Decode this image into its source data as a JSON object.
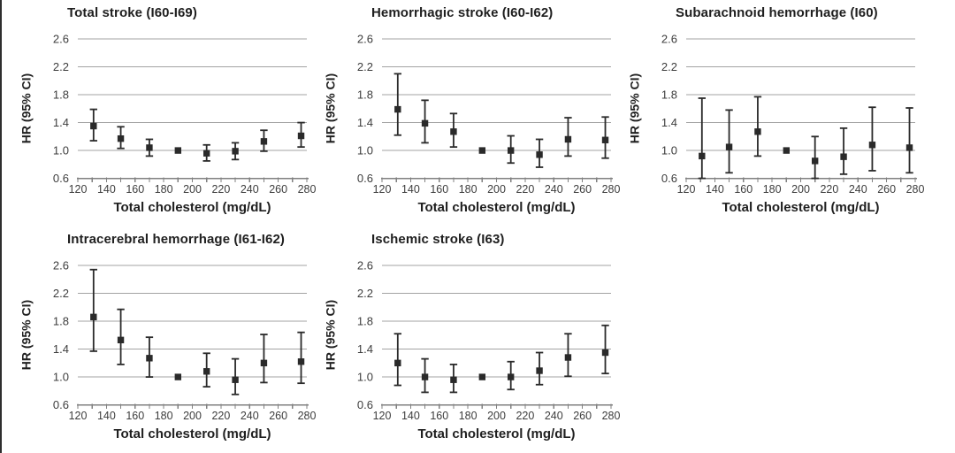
{
  "figure": {
    "y_axis_label": "HR (95% CI)",
    "x_axis_label": "Total cholesterol (mg/dL)",
    "y_ticks": [
      0.6,
      1.0,
      1.4,
      1.8,
      2.2,
      2.6
    ],
    "x_ticks": [
      120,
      140,
      160,
      180,
      200,
      220,
      240,
      260,
      280
    ],
    "x_minor_tick_step": 10,
    "grid": "horizontal-only",
    "legend": "none",
    "colors": {
      "marker": "#2a2a2a",
      "error_bar": "#2a2a2a",
      "gridline": "#a3a3a3",
      "axis_line": "#808080",
      "tick_label": "#3d3d3d",
      "title_text": "#1f1f1f",
      "background": "#ffffff"
    }
  },
  "chart_data": [
    {
      "type": "scatter",
      "title": "Total stroke (I60-I69)",
      "xlabel": "Total cholesterol (mg/dL)",
      "ylabel": "HR (95% CI)",
      "xlim": [
        120,
        280
      ],
      "ylim": [
        0.6,
        2.6
      ],
      "points": [
        {
          "x": 131,
          "hr": 1.35,
          "lo": 1.14,
          "hi": 1.59
        },
        {
          "x": 150,
          "hr": 1.17,
          "lo": 1.03,
          "hi": 1.34
        },
        {
          "x": 170,
          "hr": 1.04,
          "lo": 0.92,
          "hi": 1.16
        },
        {
          "x": 190,
          "hr": 1.0,
          "lo": null,
          "hi": null,
          "reference": true
        },
        {
          "x": 210,
          "hr": 0.96,
          "lo": 0.85,
          "hi": 1.08
        },
        {
          "x": 230,
          "hr": 0.99,
          "lo": 0.87,
          "hi": 1.11
        },
        {
          "x": 250,
          "hr": 1.13,
          "lo": 0.99,
          "hi": 1.29
        },
        {
          "x": 276,
          "hr": 1.21,
          "lo": 1.05,
          "hi": 1.4
        }
      ]
    },
    {
      "type": "scatter",
      "title": "Hemorrhagic stroke (I60-I62)",
      "xlabel": "Total cholesterol (mg/dL)",
      "ylabel": "HR (95% CI)",
      "xlim": [
        120,
        280
      ],
      "ylim": [
        0.6,
        2.6
      ],
      "points": [
        {
          "x": 131,
          "hr": 1.59,
          "lo": 1.22,
          "hi": 2.1
        },
        {
          "x": 150,
          "hr": 1.39,
          "lo": 1.11,
          "hi": 1.72
        },
        {
          "x": 170,
          "hr": 1.27,
          "lo": 1.05,
          "hi": 1.53
        },
        {
          "x": 190,
          "hr": 1.0,
          "lo": null,
          "hi": null,
          "reference": true
        },
        {
          "x": 210,
          "hr": 1.0,
          "lo": 0.82,
          "hi": 1.21
        },
        {
          "x": 230,
          "hr": 0.94,
          "lo": 0.76,
          "hi": 1.16
        },
        {
          "x": 250,
          "hr": 1.16,
          "lo": 0.92,
          "hi": 1.47
        },
        {
          "x": 276,
          "hr": 1.15,
          "lo": 0.89,
          "hi": 1.48
        }
      ]
    },
    {
      "type": "scatter",
      "title": "Subarachnoid hemorrhage (I60)",
      "xlabel": "Total cholesterol (mg/dL)",
      "ylabel": "HR (95% CI)",
      "xlim": [
        120,
        280
      ],
      "ylim": [
        0.6,
        2.6
      ],
      "points": [
        {
          "x": 131,
          "hr": 0.92,
          "lo": 0.6,
          "hi": 1.75
        },
        {
          "x": 150,
          "hr": 1.05,
          "lo": 0.68,
          "hi": 1.58
        },
        {
          "x": 170,
          "hr": 1.27,
          "lo": 0.92,
          "hi": 1.77
        },
        {
          "x": 190,
          "hr": 1.0,
          "lo": null,
          "hi": null,
          "reference": true
        },
        {
          "x": 210,
          "hr": 0.85,
          "lo": 0.6,
          "hi": 1.2
        },
        {
          "x": 230,
          "hr": 0.91,
          "lo": 0.66,
          "hi": 1.32
        },
        {
          "x": 250,
          "hr": 1.08,
          "lo": 0.71,
          "hi": 1.62
        },
        {
          "x": 276,
          "hr": 1.04,
          "lo": 0.68,
          "hi": 1.61
        }
      ]
    },
    {
      "type": "scatter",
      "title": "Intracerebral hemorrhage (I61-I62)",
      "xlabel": "Total cholesterol (mg/dL)",
      "ylabel": "HR (95% CI)",
      "xlim": [
        120,
        280
      ],
      "ylim": [
        0.6,
        2.6
      ],
      "points": [
        {
          "x": 131,
          "hr": 1.86,
          "lo": 1.37,
          "hi": 2.54
        },
        {
          "x": 150,
          "hr": 1.53,
          "lo": 1.18,
          "hi": 1.97
        },
        {
          "x": 170,
          "hr": 1.27,
          "lo": 1.0,
          "hi": 1.57
        },
        {
          "x": 190,
          "hr": 1.0,
          "lo": null,
          "hi": null,
          "reference": true
        },
        {
          "x": 210,
          "hr": 1.08,
          "lo": 0.86,
          "hi": 1.34
        },
        {
          "x": 230,
          "hr": 0.96,
          "lo": 0.75,
          "hi": 1.26
        },
        {
          "x": 250,
          "hr": 1.2,
          "lo": 0.92,
          "hi": 1.61
        },
        {
          "x": 276,
          "hr": 1.22,
          "lo": 0.91,
          "hi": 1.64
        }
      ]
    },
    {
      "type": "scatter",
      "title": "Ischemic stroke (I63)",
      "xlabel": "Total cholesterol (mg/dL)",
      "ylabel": "HR (95% CI)",
      "xlim": [
        120,
        280
      ],
      "ylim": [
        0.6,
        2.6
      ],
      "points": [
        {
          "x": 131,
          "hr": 1.2,
          "lo": 0.88,
          "hi": 1.62
        },
        {
          "x": 150,
          "hr": 1.0,
          "lo": 0.78,
          "hi": 1.26
        },
        {
          "x": 170,
          "hr": 0.96,
          "lo": 0.78,
          "hi": 1.18
        },
        {
          "x": 190,
          "hr": 1.0,
          "lo": null,
          "hi": null,
          "reference": true
        },
        {
          "x": 210,
          "hr": 1.0,
          "lo": 0.82,
          "hi": 1.22
        },
        {
          "x": 230,
          "hr": 1.09,
          "lo": 0.89,
          "hi": 1.35
        },
        {
          "x": 250,
          "hr": 1.28,
          "lo": 1.01,
          "hi": 1.62
        },
        {
          "x": 276,
          "hr": 1.35,
          "lo": 1.05,
          "hi": 1.74
        }
      ]
    }
  ]
}
